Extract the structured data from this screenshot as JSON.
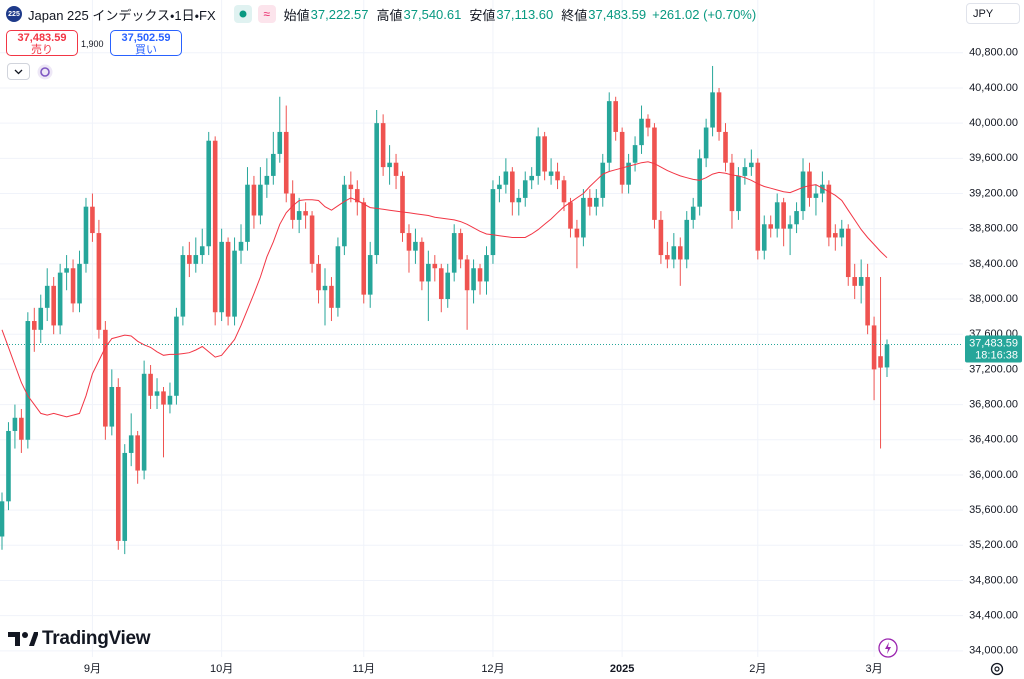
{
  "header": {
    "symbol_icon": "225",
    "title": "Japan 225 インデックス・1日・FX",
    "open_label": "始値",
    "open": "37,222.57",
    "high_label": "高値",
    "high": "37,540.61",
    "low_label": "安値",
    "low": "37,113.60",
    "close_label": "終値",
    "close": "37,483.59",
    "change": "+261.02 (+0.70%)"
  },
  "trade_panel": {
    "sell_price": "37,483.59",
    "sell_label": "売り",
    "spread": "1,900",
    "buy_price": "37,502.59",
    "buy_label": "買い"
  },
  "currency": "JPY",
  "price_tag": {
    "price": "37,483.59",
    "countdown": "18:16:38"
  },
  "brand": "TradingView",
  "chart_data": {
    "type": "candlestick",
    "up_color": "#26a69a",
    "down_color": "#ef5350",
    "grid": true,
    "ylim": [
      33930,
      41400
    ],
    "yticks": [
      {
        "value": 34000,
        "label": "34,000.00"
      },
      {
        "value": 34400,
        "label": "34,400.00"
      },
      {
        "value": 34800,
        "label": "34,800.00"
      },
      {
        "value": 35200,
        "label": "35,200.00"
      },
      {
        "value": 35600,
        "label": "35,600.00"
      },
      {
        "value": 36000,
        "label": "36,000.00"
      },
      {
        "value": 36400,
        "label": "36,400.00"
      },
      {
        "value": 36800,
        "label": "36,800.00"
      },
      {
        "value": 37200,
        "label": "37,200.00"
      },
      {
        "value": 37600,
        "label": "37,600.00"
      },
      {
        "value": 38000,
        "label": "38,000.00"
      },
      {
        "value": 38400,
        "label": "38,400.00"
      },
      {
        "value": 38800,
        "label": "38,800.00"
      },
      {
        "value": 39200,
        "label": "39,200.00"
      },
      {
        "value": 39600,
        "label": "39,600.00"
      },
      {
        "value": 40000,
        "label": "40,000.00"
      },
      {
        "value": 40400,
        "label": "40,400.00"
      },
      {
        "value": 40800,
        "label": "40,800.00"
      }
    ],
    "categories": [
      null,
      null,
      null,
      null,
      null,
      null,
      null,
      null,
      null,
      null,
      null,
      null,
      null,
      null,
      "9月",
      null,
      null,
      null,
      null,
      null,
      null,
      null,
      null,
      null,
      null,
      null,
      null,
      null,
      null,
      null,
      null,
      null,
      null,
      null,
      "10月",
      null,
      null,
      null,
      null,
      null,
      null,
      null,
      null,
      null,
      null,
      null,
      null,
      null,
      null,
      null,
      null,
      null,
      null,
      null,
      null,
      null,
      "11月",
      null,
      null,
      null,
      null,
      null,
      null,
      null,
      null,
      null,
      null,
      null,
      null,
      null,
      null,
      null,
      null,
      null,
      null,
      null,
      "12月",
      null,
      null,
      null,
      null,
      null,
      null,
      null,
      null,
      null,
      null,
      null,
      null,
      null,
      null,
      null,
      null,
      null,
      null,
      null,
      "2025",
      null,
      null,
      null,
      null,
      null,
      null,
      null,
      null,
      null,
      null,
      null,
      null,
      null,
      null,
      null,
      null,
      null,
      null,
      null,
      null,
      "2月",
      null,
      null,
      null,
      null,
      null,
      null,
      null,
      null,
      null,
      null,
      null,
      null,
      null,
      null,
      null,
      null,
      null,
      "3月",
      null,
      null
    ],
    "ohlc": [
      [
        35300,
        35800,
        35150,
        35700
      ],
      [
        35700,
        36600,
        35600,
        36500
      ],
      [
        36500,
        36800,
        36300,
        36650
      ],
      [
        36650,
        36750,
        36250,
        36400
      ],
      [
        36400,
        37850,
        36300,
        37750
      ],
      [
        37750,
        37900,
        37400,
        37650
      ],
      [
        37650,
        38050,
        37500,
        37900
      ],
      [
        37900,
        38350,
        37750,
        38150
      ],
      [
        38150,
        38250,
        37600,
        37700
      ],
      [
        37700,
        38400,
        37600,
        38300
      ],
      [
        38300,
        38500,
        38100,
        38350
      ],
      [
        38350,
        38450,
        37850,
        37950
      ],
      [
        37950,
        38550,
        37850,
        38400
      ],
      [
        38400,
        39150,
        38300,
        39050
      ],
      [
        39050,
        39200,
        38650,
        38750
      ],
      [
        38750,
        38900,
        37550,
        37650
      ],
      [
        37650,
        37750,
        36400,
        36550
      ],
      [
        36550,
        37200,
        36450,
        37000
      ],
      [
        37000,
        37100,
        35150,
        35250
      ],
      [
        35250,
        36350,
        35100,
        36250
      ],
      [
        36250,
        36700,
        36100,
        36450
      ],
      [
        36450,
        36500,
        35900,
        36050
      ],
      [
        36050,
        37300,
        35950,
        37150
      ],
      [
        37150,
        37250,
        36750,
        36900
      ],
      [
        36900,
        37100,
        36750,
        36950
      ],
      [
        36950,
        37000,
        36200,
        36800
      ],
      [
        36800,
        37050,
        36700,
        36900
      ],
      [
        36900,
        37900,
        36800,
        37800
      ],
      [
        37800,
        38600,
        37700,
        38500
      ],
      [
        38500,
        38650,
        38250,
        38400
      ],
      [
        38400,
        38700,
        38300,
        38500
      ],
      [
        38500,
        38800,
        38400,
        38600
      ],
      [
        38600,
        39900,
        38500,
        39800
      ],
      [
        39800,
        39850,
        37700,
        37850
      ],
      [
        37850,
        38800,
        37750,
        38650
      ],
      [
        38650,
        38700,
        37700,
        37800
      ],
      [
        37800,
        38700,
        37700,
        38550
      ],
      [
        38550,
        38850,
        38400,
        38650
      ],
      [
        38650,
        39500,
        38550,
        39300
      ],
      [
        39300,
        39400,
        38800,
        38950
      ],
      [
        38950,
        39500,
        38850,
        39300
      ],
      [
        39300,
        39600,
        39150,
        39400
      ],
      [
        39400,
        39900,
        39300,
        39650
      ],
      [
        39650,
        40300,
        39550,
        39900
      ],
      [
        39900,
        40200,
        39100,
        39200
      ],
      [
        39200,
        39350,
        38800,
        38900
      ],
      [
        38900,
        39150,
        38750,
        39000
      ],
      [
        39000,
        39100,
        38800,
        38950
      ],
      [
        38950,
        39000,
        38300,
        38400
      ],
      [
        38400,
        38500,
        37950,
        38100
      ],
      [
        38100,
        38350,
        37700,
        38150
      ],
      [
        38150,
        38250,
        37750,
        37900
      ],
      [
        37900,
        38700,
        37800,
        38600
      ],
      [
        38600,
        39400,
        38500,
        39300
      ],
      [
        39300,
        39450,
        39100,
        39250
      ],
      [
        39250,
        39350,
        38950,
        39100
      ],
      [
        39100,
        39150,
        37950,
        38050
      ],
      [
        38050,
        38650,
        37900,
        38500
      ],
      [
        38500,
        40150,
        38400,
        40000
      ],
      [
        40000,
        40100,
        39400,
        39500
      ],
      [
        39500,
        39750,
        39300,
        39550
      ],
      [
        39550,
        39650,
        39250,
        39400
      ],
      [
        39400,
        39450,
        38650,
        38750
      ],
      [
        38750,
        38850,
        38300,
        38550
      ],
      [
        38550,
        38800,
        38400,
        38650
      ],
      [
        38650,
        38700,
        38100,
        38200
      ],
      [
        38200,
        38550,
        37750,
        38400
      ],
      [
        38400,
        38500,
        38200,
        38350
      ],
      [
        38350,
        38400,
        37850,
        38000
      ],
      [
        38000,
        38400,
        37900,
        38300
      ],
      [
        38300,
        38850,
        38200,
        38750
      ],
      [
        38750,
        38800,
        38350,
        38450
      ],
      [
        38450,
        38500,
        37650,
        38100
      ],
      [
        38100,
        38450,
        37950,
        38350
      ],
      [
        38350,
        38400,
        38050,
        38200
      ],
      [
        38200,
        38600,
        38050,
        38500
      ],
      [
        38500,
        39350,
        38400,
        39250
      ],
      [
        39250,
        39400,
        39100,
        39300
      ],
      [
        39300,
        39600,
        39200,
        39450
      ],
      [
        39450,
        39500,
        38950,
        39100
      ],
      [
        39100,
        39250,
        38950,
        39150
      ],
      [
        39150,
        39450,
        39050,
        39350
      ],
      [
        39350,
        39500,
        39250,
        39400
      ],
      [
        39400,
        39950,
        39300,
        39850
      ],
      [
        39850,
        39900,
        39350,
        39450
      ],
      [
        39400,
        39600,
        39300,
        39450
      ],
      [
        39450,
        39550,
        39250,
        39350
      ],
      [
        39350,
        39400,
        39000,
        39100
      ],
      [
        39100,
        39150,
        38700,
        38800
      ],
      [
        38800,
        38900,
        38350,
        38700
      ],
      [
        38700,
        39250,
        38600,
        39150
      ],
      [
        39150,
        39250,
        38950,
        39050
      ],
      [
        39050,
        39250,
        38950,
        39150
      ],
      [
        39150,
        39650,
        39050,
        39550
      ],
      [
        39550,
        40350,
        39450,
        40250
      ],
      [
        40250,
        40300,
        39800,
        39900
      ],
      [
        39900,
        39950,
        39200,
        39300
      ],
      [
        39300,
        39650,
        39200,
        39550
      ],
      [
        39550,
        39850,
        39450,
        39750
      ],
      [
        39750,
        40200,
        39650,
        40050
      ],
      [
        40050,
        40100,
        39850,
        39950
      ],
      [
        39950,
        40000,
        38800,
        38900
      ],
      [
        38900,
        39000,
        38400,
        38500
      ],
      [
        38500,
        38650,
        38350,
        38450
      ],
      [
        38450,
        38750,
        38350,
        38600
      ],
      [
        38600,
        38700,
        38150,
        38450
      ],
      [
        38450,
        39000,
        38350,
        38900
      ],
      [
        38900,
        39150,
        38800,
        39050
      ],
      [
        39050,
        39700,
        38950,
        39600
      ],
      [
        39600,
        40050,
        39500,
        39950
      ],
      [
        39950,
        40650,
        39850,
        40350
      ],
      [
        40350,
        40400,
        39800,
        39900
      ],
      [
        39900,
        40000,
        39450,
        39550
      ],
      [
        39550,
        39650,
        38800,
        39000
      ],
      [
        39000,
        39500,
        38900,
        39400
      ],
      [
        39400,
        39600,
        39300,
        39500
      ],
      [
        39500,
        39700,
        39400,
        39550
      ],
      [
        39550,
        39600,
        38450,
        38550
      ],
      [
        38550,
        38950,
        38450,
        38850
      ],
      [
        38850,
        38950,
        38700,
        38800
      ],
      [
        38800,
        39200,
        38700,
        39100
      ],
      [
        39100,
        39150,
        38600,
        38800
      ],
      [
        38800,
        38950,
        38500,
        38850
      ],
      [
        38850,
        39100,
        38750,
        39000
      ],
      [
        39000,
        39600,
        38900,
        39450
      ],
      [
        39450,
        39550,
        39050,
        39150
      ],
      [
        39150,
        39300,
        38950,
        39200
      ],
      [
        39200,
        39450,
        39100,
        39300
      ],
      [
        39300,
        39350,
        38600,
        38700
      ],
      [
        38750,
        38850,
        38550,
        38700
      ],
      [
        38700,
        38900,
        38600,
        38800
      ],
      [
        38800,
        38850,
        38150,
        38250
      ],
      [
        38250,
        38400,
        38000,
        38150
      ],
      [
        38150,
        38450,
        37950,
        38250
      ],
      [
        38250,
        38400,
        37600,
        37700
      ],
      [
        37700,
        37800,
        36850,
        37200
      ],
      [
        37350,
        38250,
        36300,
        37220
      ],
      [
        37222.57,
        37540.61,
        37113.6,
        37483.59
      ]
    ],
    "overlay": {
      "color": "#f23645",
      "values": [
        37650,
        37450,
        37250,
        37050,
        36900,
        36800,
        36700,
        36680,
        36700,
        36680,
        36660,
        36680,
        36700,
        36900,
        37150,
        37300,
        37450,
        37550,
        37570,
        37590,
        37580,
        37520,
        37480,
        37450,
        37400,
        37360,
        37370,
        37370,
        37380,
        37390,
        37420,
        37460,
        37400,
        37340,
        37360,
        37450,
        37540,
        37700,
        37880,
        38060,
        38250,
        38480,
        38650,
        38850,
        38980,
        39060,
        39120,
        39130,
        39130,
        39120,
        39050,
        39010,
        39060,
        39110,
        39150,
        39120,
        39080,
        39040,
        39030,
        39020,
        39010,
        39000,
        38990,
        38980,
        38970,
        38960,
        38950,
        38930,
        38920,
        38910,
        38900,
        38880,
        38850,
        38810,
        38770,
        38740,
        38730,
        38720,
        38710,
        38700,
        38700,
        38700,
        38740,
        38790,
        38850,
        38910,
        38980,
        39050,
        39100,
        39150,
        39200,
        39280,
        39350,
        39420,
        39450,
        39470,
        39490,
        39510,
        39530,
        39550,
        39560,
        39540,
        39500,
        39460,
        39430,
        39400,
        39380,
        39360,
        39350,
        39380,
        39420,
        39440,
        39430,
        39410,
        39400,
        39380,
        39350,
        39310,
        39280,
        39260,
        39240,
        39220,
        39210,
        39240,
        39270,
        39290,
        39300,
        39260,
        39220,
        39180,
        39120,
        39010,
        38900,
        38790,
        38700,
        38620,
        38540,
        38470
      ]
    }
  }
}
